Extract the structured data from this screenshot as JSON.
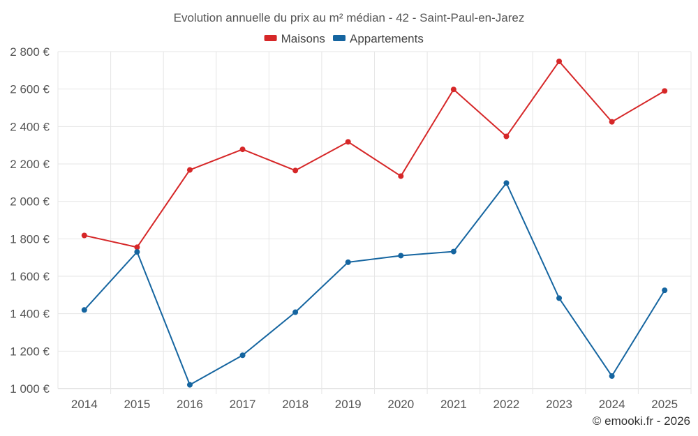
{
  "chart_data": {
    "type": "line",
    "title": "Evolution annuelle du prix au m² médian - 42 - Saint-Paul-en-Jarez",
    "categories": [
      "2014",
      "2015",
      "2016",
      "2017",
      "2018",
      "2019",
      "2020",
      "2021",
      "2022",
      "2023",
      "2024",
      "2025"
    ],
    "series": [
      {
        "name": "Maisons",
        "color": "#d62728",
        "values": [
          1818,
          1755,
          2168,
          2278,
          2165,
          2318,
          2135,
          2598,
          2347,
          2748,
          2425,
          2590
        ]
      },
      {
        "name": "Appartements",
        "color": "#1565a0",
        "values": [
          1420,
          1730,
          1020,
          1178,
          1408,
          1675,
          1710,
          1732,
          2098,
          1483,
          1067,
          1525
        ]
      }
    ],
    "ylim": [
      1000,
      2800
    ],
    "yticks": [
      1000,
      1200,
      1400,
      1600,
      1800,
      2000,
      2200,
      2400,
      2600,
      2800
    ],
    "ytick_labels": [
      "1 000 €",
      "1 200 €",
      "1 400 €",
      "1 600 €",
      "1 800 €",
      "2 000 €",
      "2 200 €",
      "2 400 €",
      "2 600 €",
      "2 800 €"
    ],
    "xlabel": "",
    "ylabel": "",
    "grid": true,
    "legend_position": "top-center"
  },
  "credit": "© emooki.fr - 2026"
}
